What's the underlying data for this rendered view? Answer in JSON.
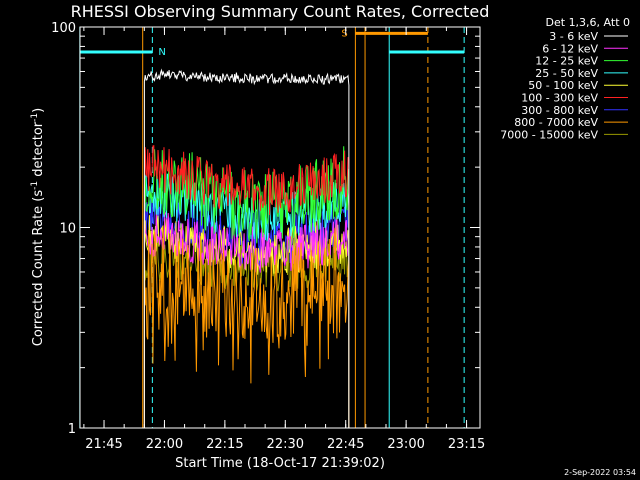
{
  "chart_data": {
    "type": "line",
    "title": "RHESSI Observing Summary Count Rates, Corrected",
    "xlabel": "Start Time (18-Oct-17 21:39:02)",
    "ylabel": "Corrected Count Rate (s",
    "ylabel_sup": "-1",
    "ylabel_mid": " detector",
    "ylabel_sup2": "-1",
    "ylabel_end": ")",
    "xlim": [
      21.6506,
      23.3056
    ],
    "ylim": [
      1,
      100
    ],
    "yscale": "log",
    "x_ticks": [
      {
        "value": 21.75,
        "label": "21:45"
      },
      {
        "value": 22.0,
        "label": "22:00"
      },
      {
        "value": 22.25,
        "label": "22:15"
      },
      {
        "value": 22.5,
        "label": "22:30"
      },
      {
        "value": 22.75,
        "label": "22:45"
      },
      {
        "value": 23.0,
        "label": "23:00"
      },
      {
        "value": 23.25,
        "label": "23:15"
      }
    ],
    "y_ticks": [
      {
        "value": 1,
        "label": "1"
      },
      {
        "value": 10,
        "label": "10"
      },
      {
        "value": 100,
        "label": "100"
      }
    ],
    "legend_header": "Det 1,3,6, Att 0",
    "legend_position": "top-right, outside plot",
    "data_interval": [
      21.917,
      22.763
    ],
    "series": [
      {
        "name": "3 - 6 keV",
        "color": "#ffffff",
        "x": [
          21.917,
          22.0,
          22.1,
          22.2,
          22.3,
          22.4,
          22.5,
          22.6,
          22.7,
          22.763
        ],
        "values": [
          56,
          58,
          57,
          56,
          56,
          55,
          55,
          55,
          55,
          54
        ]
      },
      {
        "name": "6 - 12 keV",
        "color": "#ff33ff",
        "x": [
          21.917,
          22.0,
          22.1,
          22.2,
          22.3,
          22.4,
          22.5,
          22.6,
          22.7,
          22.763
        ],
        "values": [
          9.5,
          9.2,
          8.8,
          8.4,
          8.0,
          7.8,
          7.9,
          8.2,
          8.6,
          8.8
        ]
      },
      {
        "name": "12 - 25 keV",
        "color": "#33ff33",
        "x": [
          21.917,
          22.0,
          22.1,
          22.2,
          22.3,
          22.4,
          22.5,
          22.6,
          22.7,
          22.763
        ],
        "values": [
          18,
          17,
          16,
          14,
          13,
          12.5,
          13,
          14,
          16,
          18
        ]
      },
      {
        "name": "25 - 50 keV",
        "color": "#33ffff",
        "x": [
          21.917,
          22.0,
          22.1,
          22.2,
          22.3,
          22.4,
          22.5,
          22.6,
          22.7,
          22.763
        ],
        "values": [
          15,
          14.5,
          13.5,
          12.5,
          11.5,
          11,
          11.5,
          12,
          13.5,
          14.5
        ]
      },
      {
        "name": "50 - 100 keV",
        "color": "#ffff33",
        "x": [
          21.917,
          22.0,
          22.1,
          22.2,
          22.3,
          22.4,
          22.5,
          22.6,
          22.7,
          22.763
        ],
        "values": [
          9,
          8.8,
          8.4,
          8.0,
          7.6,
          7.4,
          7.6,
          8.0,
          8.4,
          8.6
        ]
      },
      {
        "name": "100 - 300 keV",
        "color": "#ff2222",
        "x": [
          21.917,
          22.0,
          22.1,
          22.2,
          22.3,
          22.4,
          22.5,
          22.6,
          22.7,
          22.763
        ],
        "values": [
          20,
          19.5,
          18,
          16.5,
          15.5,
          15,
          15.5,
          16.5,
          18,
          19
        ]
      },
      {
        "name": "300 - 800 keV",
        "color": "#3333ff",
        "x": [
          21.917,
          22.0,
          22.1,
          22.2,
          22.3,
          22.4,
          22.5,
          22.6,
          22.7,
          22.763
        ],
        "values": [
          11.5,
          11,
          10.2,
          9.4,
          8.7,
          8.3,
          8.6,
          9.2,
          10,
          10.5
        ]
      },
      {
        "name": "800 - 7000 keV",
        "color": "#ff9900",
        "x": [
          21.917,
          22.0,
          22.1,
          22.2,
          22.3,
          22.4,
          22.5,
          22.6,
          22.7,
          22.763
        ],
        "values": [
          6.2,
          6.0,
          5.6,
          5.2,
          4.8,
          4.6,
          4.8,
          5.2,
          5.6,
          5.9
        ]
      },
      {
        "name": "7000 - 15000 keV",
        "color": "#999900",
        "x": [
          21.917,
          22.0,
          22.1,
          22.2,
          22.3,
          22.4,
          22.5,
          22.6,
          22.7,
          22.763
        ],
        "values": [
          7.2,
          7.0,
          6.8,
          6.6,
          6.4,
          6.3,
          6.4,
          6.6,
          6.8,
          7.0
        ]
      }
    ],
    "flags": [
      {
        "label": "N",
        "color": "#33ffff",
        "start": 21.6506,
        "end": 21.95,
        "level": 75
      },
      {
        "label": "S",
        "color": "#ff9900",
        "start": 22.79,
        "end": 23.09,
        "level": 93
      },
      {
        "label": "",
        "color": "#33ffff",
        "start": 22.93,
        "end": 23.24,
        "level": 75
      }
    ],
    "vertical_markers": [
      {
        "x": 21.65,
        "color": "#33ffff",
        "style": "solid"
      },
      {
        "x": 21.91,
        "color": "#ff9900",
        "style": "solid"
      },
      {
        "x": 21.95,
        "color": "#33ffff",
        "style": "dashed"
      },
      {
        "x": 22.79,
        "color": "#ff9900",
        "style": "solid"
      },
      {
        "x": 22.83,
        "color": "#ff9900",
        "style": "solid"
      },
      {
        "x": 22.93,
        "color": "#33ffff",
        "style": "solid"
      },
      {
        "x": 23.09,
        "color": "#ff9900",
        "style": "dashed"
      },
      {
        "x": 23.24,
        "color": "#33ffff",
        "style": "dashed"
      }
    ]
  },
  "footer_date": "2-Sep-2022 03:54"
}
